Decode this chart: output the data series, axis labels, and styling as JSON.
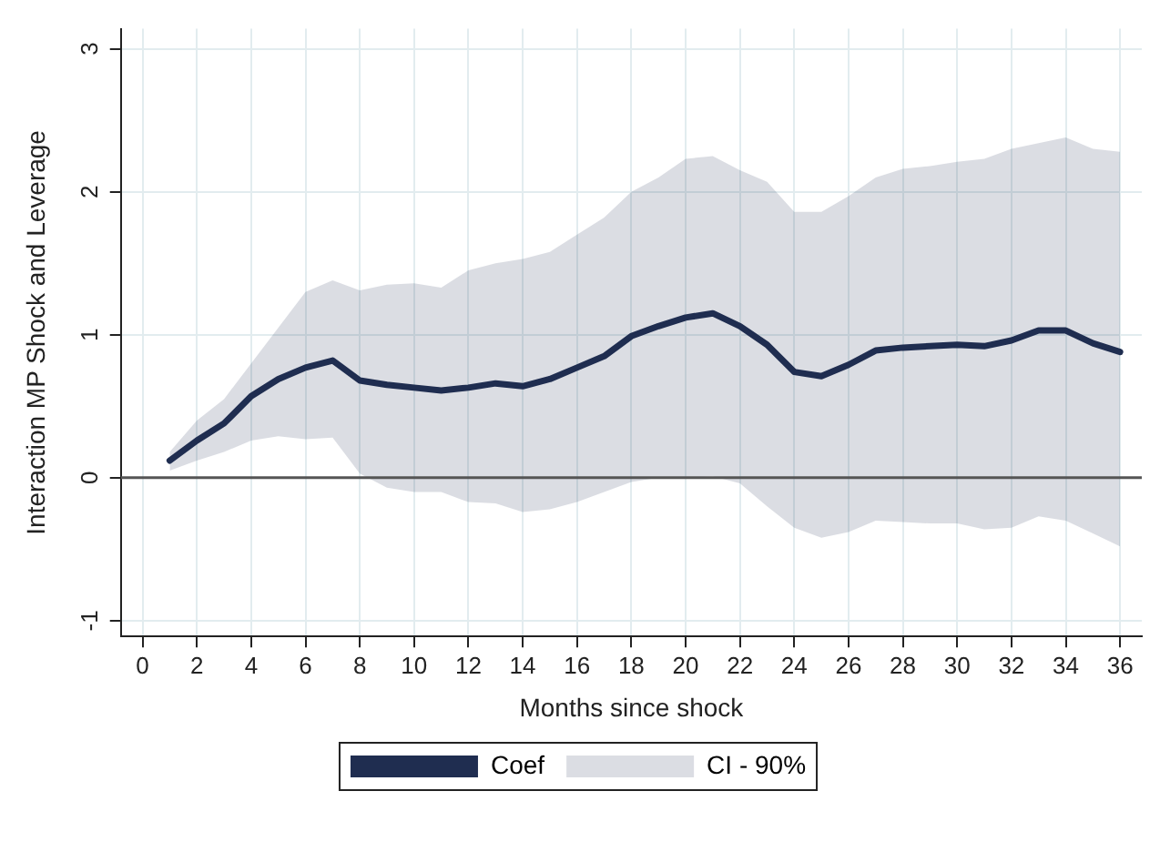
{
  "chart_data": {
    "type": "line",
    "xlabel": "Months since shock",
    "ylabel": "Interaction MP Shock and Leverage",
    "x": [
      1,
      2,
      3,
      4,
      5,
      6,
      7,
      8,
      9,
      10,
      11,
      12,
      13,
      14,
      15,
      16,
      17,
      18,
      19,
      20,
      21,
      22,
      23,
      24,
      25,
      26,
      27,
      28,
      29,
      30,
      31,
      32,
      33,
      34,
      35,
      36
    ],
    "series": [
      {
        "name": "Coef",
        "color": "#1f2d50",
        "values": [
          0.12,
          0.26,
          0.38,
          0.57,
          0.69,
          0.77,
          0.82,
          0.68,
          0.65,
          0.63,
          0.61,
          0.63,
          0.66,
          0.64,
          0.69,
          0.77,
          0.85,
          0.99,
          1.06,
          1.12,
          1.15,
          1.06,
          0.93,
          0.74,
          0.71,
          0.79,
          0.89,
          0.91,
          0.92,
          0.93,
          0.92,
          0.96,
          1.03,
          1.03,
          0.94,
          0.88
        ],
        "lower": [
          0.05,
          0.12,
          0.18,
          0.26,
          0.29,
          0.27,
          0.28,
          0.03,
          -0.07,
          -0.1,
          -0.1,
          -0.17,
          -0.18,
          -0.24,
          -0.22,
          -0.17,
          -0.1,
          -0.03,
          0.0,
          0.0,
          0.01,
          -0.04,
          -0.2,
          -0.35,
          -0.42,
          -0.38,
          -0.3,
          -0.31,
          -0.32,
          -0.32,
          -0.36,
          -0.35,
          -0.27,
          -0.3,
          -0.39,
          -0.48
        ],
        "upper": [
          0.18,
          0.4,
          0.55,
          0.8,
          1.05,
          1.3,
          1.38,
          1.31,
          1.35,
          1.36,
          1.33,
          1.45,
          1.5,
          1.53,
          1.58,
          1.7,
          1.82,
          2.0,
          2.1,
          2.23,
          2.25,
          2.15,
          2.07,
          1.86,
          1.86,
          1.97,
          2.1,
          2.16,
          2.18,
          2.21,
          2.23,
          2.3,
          2.34,
          2.38,
          2.3,
          2.28
        ]
      }
    ],
    "annotations": [
      "CI - 90%"
    ],
    "ref_lines": [
      {
        "axis": "y",
        "value": 0,
        "color": "#555555"
      }
    ],
    "xlim": [
      -0.8,
      36.8
    ],
    "xticks": [
      0,
      2,
      4,
      6,
      8,
      10,
      12,
      14,
      16,
      18,
      20,
      22,
      24,
      26,
      28,
      30,
      32,
      34,
      36
    ],
    "ylim": [
      -1.11,
      3.14
    ],
    "yticks": [
      -1,
      0,
      1,
      2,
      3
    ],
    "grid": true,
    "legend": "bottom",
    "marker": "none",
    "line_style": "solid"
  }
}
